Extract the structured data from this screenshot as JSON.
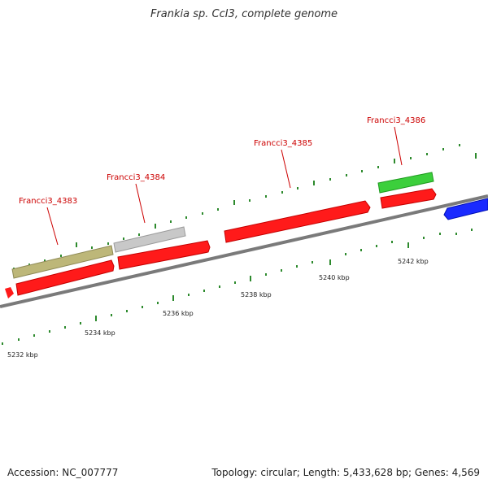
{
  "title": "Frankia sp. CcI3, complete genome",
  "footer": {
    "accession": "Accession: NC_007777",
    "summary": "Topology: circular; Length: 5,433,628 bp; Genes: 4,569"
  },
  "colors": {
    "backbone": "#7a7a7a",
    "tick": "#2d8a2d",
    "label": "#cc0000",
    "cds_forward": "#ff1a1a",
    "cds_reverse": "#1a2aff",
    "olive": "#bdb779",
    "gray": "#c8c8c8",
    "green": "#3ccf3c"
  },
  "scale_labels": [
    "5232 kbp",
    "5234 kbp",
    "5236 kbp",
    "5238 kbp",
    "5240 kbp",
    "5242 kbp"
  ],
  "gene_labels": [
    "Francci3_4383",
    "Francci3_4384",
    "Francci3_4385",
    "Francci3_4386"
  ]
}
